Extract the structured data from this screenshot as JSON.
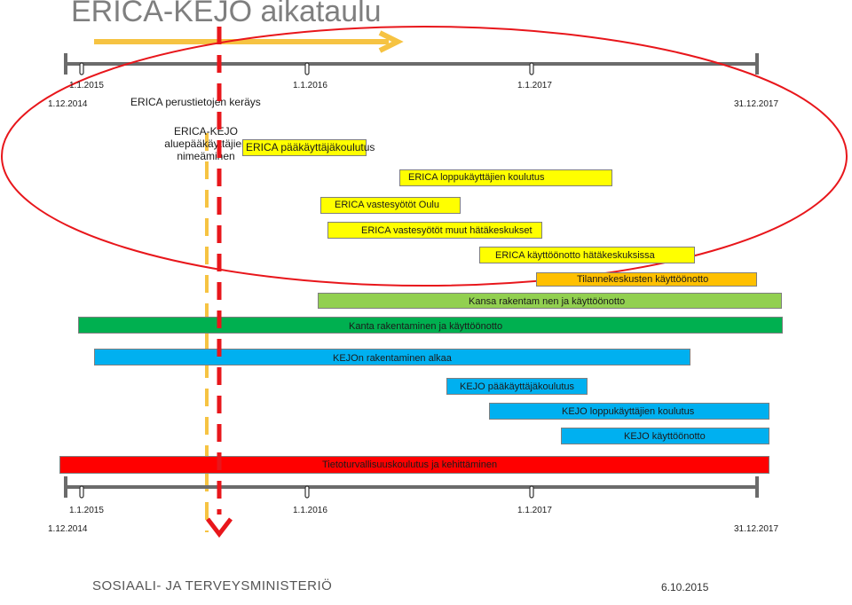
{
  "title": "ERICA-KEJO aikataulu",
  "colors": {
    "yellow": "#f6c342",
    "red": "#e8161b",
    "gray_line": "#6b6b6b",
    "task_yellow": "#ffff00",
    "task_orange": "#ffc000",
    "task_lightgreen": "#92d050",
    "task_green": "#00b050",
    "task_blue": "#00b0f0",
    "task_red": "#ff0000"
  },
  "timeline_top": {
    "year_labels": [
      "1.1.2015",
      "1.1.2016",
      "1.1.2017"
    ],
    "start_label": "1.12.2014",
    "end_label": "31.12.2017"
  },
  "timeline_bottom": {
    "year_labels": [
      "1.1.2015",
      "1.1.2016",
      "1.1.2017"
    ],
    "start_label": "1.12.2014",
    "end_label": "31.12.2017"
  },
  "erica_labels": {
    "collection": "ERICA perustietojen keräys",
    "appoint": "ERICA-KEJO\naluepääkäyttäjien\nnimeäminen"
  },
  "tasks": [
    {
      "id": "erica-paakayttajakoulutus",
      "label": "ERICA pääkäyttäjäkoulutus",
      "color": "#ffff00"
    },
    {
      "id": "erica-loppukayttajien-koulutus",
      "label": "ERICA loppukäyttäjien koulutus",
      "color": "#ffff00"
    },
    {
      "id": "erica-vastesyotot-oulu",
      "label": "ERICA vastesyötöt Oulu",
      "color": "#ffff00"
    },
    {
      "id": "erica-vastesyotot-muut",
      "label": "ERICA vastesyötöt muut hätäkeskukset",
      "color": "#ffff00"
    },
    {
      "id": "erica-kayttoonotto",
      "label": "ERICA käyttöönotto hätäkeskuksissa",
      "color": "#ffff00"
    },
    {
      "id": "tilannekeskusten-kayttoonotto",
      "label": "Tilannekeskusten käyttöönotto",
      "color": "#ffc000"
    },
    {
      "id": "kansa-rakentaminen",
      "label": "Kansa rakentam nen ja käyttöönotto",
      "color": "#92d050"
    },
    {
      "id": "kanta-rakentaminen",
      "label": "Kanta rakentaminen ja käyttöönotto",
      "color": "#00b050"
    },
    {
      "id": "kejon-rakentaminen",
      "label": "KEJOn rakentaminen alkaa",
      "color": "#00b0f0"
    },
    {
      "id": "kejo-paakayttajakoulutus",
      "label": "KEJO pääkäyttäjäkoulutus",
      "color": "#00b0f0"
    },
    {
      "id": "kejo-loppukayttajien-koulutus",
      "label": "KEJO loppukäyttäjien koulutus",
      "color": "#00b0f0"
    },
    {
      "id": "kejo-kayttoonotto",
      "label": "KEJO käyttöönotto",
      "color": "#00b0f0"
    },
    {
      "id": "tietoturvallisuuskoulutus",
      "label": "Tietoturvallisuuskoulutus ja kehittäminen",
      "color": "#ff0000"
    }
  ],
  "footer": {
    "organization": "SOSIAALI- JA TERVEYSMINISTERIÖ",
    "date": "6.10.2015"
  }
}
